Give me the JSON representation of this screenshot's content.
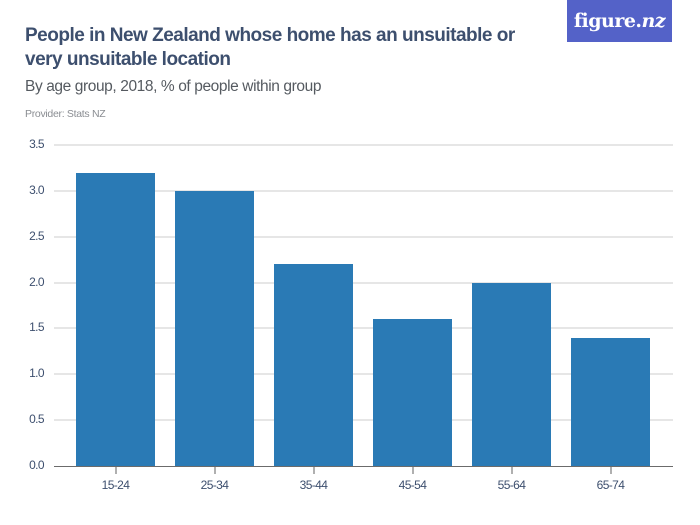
{
  "header": {
    "title": "People in New Zealand whose home has an unsuitable or very unsuitable location",
    "subtitle": "By age group, 2018, % of people within group",
    "provider": "Provider: Stats NZ"
  },
  "logo": {
    "text_main": "figure.",
    "text_italic": "nz",
    "background": "#5462c8"
  },
  "colors": {
    "bar": "#2a7ab5",
    "gridline": "#e6e6e6",
    "axis": "#6b6b6b",
    "text": "#3d4f6e"
  },
  "chart_data": {
    "type": "bar",
    "title": "People in New Zealand whose home has an unsuitable or very unsuitable location",
    "subtitle": "By age group, 2018, % of people within group",
    "xlabel": "",
    "ylabel": "",
    "categories": [
      "15-24",
      "25-34",
      "35-44",
      "45-54",
      "55-64",
      "65-74"
    ],
    "values": [
      3.2,
      3.0,
      2.2,
      1.6,
      2.0,
      1.4
    ],
    "ylim": [
      0,
      3.5
    ],
    "yticks": [
      "0.0",
      "0.5",
      "1.0",
      "1.5",
      "2.0",
      "2.5",
      "3.0",
      "3.5"
    ],
    "grid": true,
    "legend": null
  }
}
